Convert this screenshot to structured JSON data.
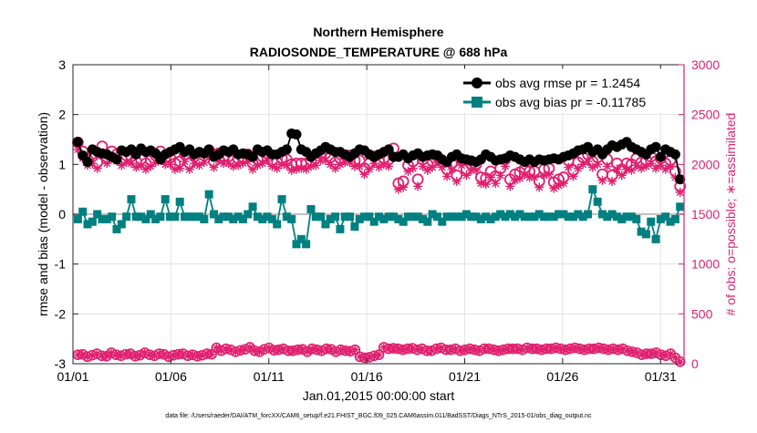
{
  "chart_data": {
    "type": "line",
    "title_line1": "Northern Hemisphere",
    "title_line2": "RADIOSONDE_TEMPERATURE @ 688 hPa",
    "xlabel": "Jan.01,2015 00:00:00 start",
    "ylabel_left": "rmse and bias (model - observation)",
    "ylabel_right": "# of obs: o=possible; ∗=assimilated",
    "footer": "data file: /Users/raeder/DAI/ATM_forcXX/CAM6_setup/f.e21.FHIST_BGC.f09_025.CAM6assim.011/BadSST/Diags_NTrS_2015-01/obs_diag_output.nc",
    "xlim": [
      0,
      31.2
    ],
    "ylim_left": [
      -3,
      3
    ],
    "ylim_right": [
      0,
      3000
    ],
    "x_ticks": [
      {
        "value": 0,
        "label": "01/01"
      },
      {
        "value": 5,
        "label": "01/06"
      },
      {
        "value": 10,
        "label": "01/11"
      },
      {
        "value": 15,
        "label": "01/16"
      },
      {
        "value": 20,
        "label": "01/21"
      },
      {
        "value": 25,
        "label": "01/26"
      },
      {
        "value": 30,
        "label": "01/31"
      }
    ],
    "y_ticks_left": [
      {
        "value": 3,
        "label": "3"
      },
      {
        "value": 2,
        "label": "2"
      },
      {
        "value": 1,
        "label": "1"
      },
      {
        "value": 0,
        "label": "0"
      },
      {
        "value": -1,
        "label": "-1"
      },
      {
        "value": -2,
        "label": "-2"
      },
      {
        "value": -3,
        "label": "-3"
      }
    ],
    "y_ticks_right": [
      {
        "value": 3000,
        "label": "3000"
      },
      {
        "value": 2500,
        "label": "2500"
      },
      {
        "value": 2000,
        "label": "2000"
      },
      {
        "value": 1500,
        "label": "1500"
      },
      {
        "value": 1000,
        "label": "1000"
      },
      {
        "value": 500,
        "label": "500"
      },
      {
        "value": 0,
        "label": "0"
      }
    ],
    "grid": true,
    "legend_position": "top-right",
    "legend": [
      {
        "name": "obs avg rmse pr = 1.2454",
        "color": "#000000",
        "marker": "circle"
      },
      {
        "name": "obs avg bias pr = -0.11785",
        "color": "#008080",
        "marker": "square"
      }
    ],
    "colors": {
      "rmse": "#000000",
      "bias": "#008080",
      "obs": "#e0206f",
      "zero_line": "#c0c0c0"
    },
    "series": [
      {
        "name": "rmse",
        "values": [
          1.45,
          1.18,
          1.05,
          1.3,
          1.25,
          1.22,
          1.2,
          1.15,
          1.1,
          1.28,
          1.25,
          1.3,
          1.2,
          1.32,
          1.25,
          1.28,
          1.22,
          1.1,
          1.2,
          1.25,
          1.3,
          1.35,
          1.25,
          1.3,
          1.2,
          1.25,
          1.22,
          1.3,
          1.15,
          1.2,
          1.28,
          1.25,
          1.3,
          1.2,
          1.22,
          1.2,
          1.15,
          1.3,
          1.25,
          1.28,
          1.2,
          1.2,
          1.25,
          1.3,
          1.62,
          1.6,
          1.3,
          1.25,
          1.15,
          1.22,
          1.28,
          1.35,
          1.3,
          1.25,
          1.25,
          1.2,
          1.15,
          1.22,
          1.3,
          1.28,
          1.2,
          1.15,
          1.2,
          1.25,
          1.3,
          1.15,
          1.15,
          1.2,
          1.12,
          1.18,
          1.22,
          1.15,
          1.18,
          1.2,
          1.18,
          1.1,
          1.05,
          1.15,
          1.2,
          1.12,
          1.1,
          1.08,
          1.05,
          1.1,
          1.2,
          1.15,
          1.08,
          1.1,
          1.12,
          1.18,
          1.15,
          1.1,
          1.05,
          1.1,
          1.05,
          1.1,
          1.08,
          1.1,
          1.12,
          1.1,
          1.15,
          1.18,
          1.22,
          1.28,
          1.3,
          1.35,
          1.25,
          1.3,
          1.2,
          1.3,
          1.38,
          1.35,
          1.4,
          1.45,
          1.35,
          1.3,
          1.25,
          1.2,
          1.3,
          1.35,
          1.15,
          1.3,
          1.25,
          1.2,
          0.7
        ]
      },
      {
        "name": "bias",
        "values": [
          -0.1,
          0.05,
          -0.2,
          -0.15,
          0.0,
          -0.1,
          -0.1,
          -0.05,
          -0.3,
          -0.2,
          -0.05,
          0.3,
          -0.05,
          -0.05,
          -0.1,
          0.0,
          -0.1,
          -0.05,
          0.3,
          -0.05,
          -0.05,
          0.25,
          -0.05,
          -0.05,
          -0.05,
          -0.05,
          -0.1,
          0.4,
          0.0,
          -0.1,
          -0.05,
          -0.05,
          -0.1,
          -0.05,
          -0.1,
          0.0,
          0.15,
          -0.05,
          -0.1,
          -0.05,
          -0.1,
          -0.2,
          0.3,
          -0.05,
          -0.1,
          -0.6,
          -0.5,
          -0.6,
          0.1,
          -0.05,
          -0.05,
          -0.2,
          -0.1,
          -0.05,
          -0.3,
          -0.05,
          -0.05,
          -0.25,
          -0.1,
          -0.05,
          -0.05,
          -0.15,
          -0.05,
          -0.1,
          -0.05,
          -0.05,
          -0.1,
          -0.15,
          -0.05,
          -0.05,
          -0.05,
          -0.1,
          -0.15,
          0.0,
          -0.05,
          -0.15,
          -0.05,
          -0.05,
          -0.05,
          -0.05,
          0.0,
          -0.05,
          -0.05,
          -0.1,
          -0.05,
          -0.1,
          -0.05,
          0.0,
          -0.05,
          0.0,
          -0.05,
          0.0,
          -0.05,
          -0.05,
          -0.05,
          0.0,
          -0.05,
          -0.05,
          -0.05,
          0.0,
          0.0,
          -0.05,
          -0.05,
          0.0,
          -0.05,
          0.0,
          0.5,
          0.25,
          0.0,
          -0.05,
          0.0,
          -0.05,
          -0.1,
          -0.05,
          -0.05,
          -0.1,
          -0.35,
          -0.4,
          -0.15,
          -0.5,
          -0.1,
          -0.05,
          -0.15,
          -0.1,
          0.15
        ]
      },
      {
        "name": "obs possible",
        "values": [
          2220,
          2130,
          2050,
          2080,
          2020,
          2180,
          2070,
          2130,
          2100,
          2050,
          2090,
          2080,
          2030,
          2050,
          2010,
          2040,
          2090,
          2130,
          2070,
          2070,
          2010,
          2030,
          2100,
          2010,
          2080,
          2050,
          2090,
          2140,
          2030,
          2110,
          2080,
          2080,
          2040,
          2060,
          2070,
          2100,
          2010,
          2050,
          2080,
          2110,
          2040,
          2020,
          2060,
          2050,
          2000,
          2010,
          2010,
          2010,
          2040,
          2060,
          2110,
          2110,
          2070,
          2020,
          2060,
          2090,
          2090,
          2040,
          2040,
          1960,
          2010,
          2080,
          2030,
          2060,
          2050,
          2160,
          1810,
          1830,
          1990,
          2030,
          1850,
          2050,
          2000,
          2030,
          2080,
          2030,
          1950,
          2010,
          1890,
          2050,
          1950,
          2000,
          2000,
          1870,
          1860,
          1930,
          1880,
          1960,
          2050,
          1850,
          1900,
          1920,
          1960,
          1930,
          1930,
          1830,
          1950,
          1960,
          1820,
          1850,
          1870,
          2040,
          1940,
          2020,
          2070,
          2100,
          2030,
          2070,
          1900,
          2050,
          1890,
          2010,
          1950,
          2010,
          2000,
          2060,
          2020,
          2040,
          2080,
          2030,
          2060,
          2010,
          2040,
          1930,
          1780
        ]
      },
      {
        "name": "obs assimilated",
        "values": [
          2150,
          2060,
          1990,
          2010,
          1960,
          2090,
          2010,
          2060,
          2040,
          1990,
          2020,
          2010,
          1970,
          1990,
          1950,
          1980,
          2020,
          2070,
          2000,
          2000,
          1950,
          1960,
          2030,
          1950,
          2010,
          1990,
          2020,
          2070,
          1970,
          2040,
          2010,
          2010,
          1980,
          1990,
          2010,
          2030,
          1950,
          1990,
          2010,
          2040,
          1980,
          1960,
          2000,
          1990,
          1940,
          1950,
          1960,
          1950,
          1980,
          1990,
          2040,
          2040,
          2000,
          1960,
          2000,
          2020,
          2020,
          1980,
          1980,
          1900,
          1950,
          2010,
          1970,
          2000,
          1980,
          2090,
          1750,
          1770,
          1930,
          1960,
          1780,
          1980,
          1940,
          1970,
          2020,
          1970,
          1880,
          1950,
          1830,
          1990,
          1890,
          1940,
          1940,
          1810,
          1800,
          1870,
          1810,
          1890,
          1980,
          1780,
          1840,
          1860,
          1900,
          1870,
          1870,
          1770,
          1890,
          1900,
          1760,
          1790,
          1810,
          1970,
          1880,
          1960,
          2000,
          2030,
          1970,
          2000,
          1840,
          1980,
          1830,
          1950,
          1890,
          1950,
          1940,
          1990,
          1960,
          1980,
          2010,
          1960,
          1990,
          1950,
          1980,
          1870,
          1720
        ]
      },
      {
        "name": "obs count",
        "values": [
          90,
          95,
          70,
          85,
          100,
          80,
          75,
          110,
          90,
          80,
          95,
          100,
          75,
          85,
          110,
          90,
          80,
          100,
          95,
          70,
          85,
          95,
          100,
          80,
          90,
          75,
          85,
          100,
          95,
          160,
          130,
          150,
          140,
          120,
          135,
          145,
          165,
          130,
          120,
          145,
          160,
          135,
          140,
          150,
          130,
          130,
          140,
          145,
          120,
          150,
          140,
          130,
          150,
          145,
          120,
          140,
          130,
          125,
          140,
          70,
          60,
          65,
          80,
          90,
          165,
          150,
          155,
          150,
          140,
          150,
          155,
          140,
          150,
          130,
          130,
          150,
          160,
          140,
          140,
          150,
          130,
          140,
          150,
          140,
          130,
          150,
          150,
          140,
          130,
          140,
          150,
          150,
          150,
          140,
          160,
          150,
          150,
          140,
          150,
          150,
          160,
          150,
          140,
          150,
          160,
          150,
          140,
          150,
          150,
          160,
          150,
          140,
          150,
          140,
          150,
          130,
          120,
          110,
          90,
          100,
          100,
          110,
          90,
          80,
          100,
          60,
          20
        ]
      }
    ]
  }
}
